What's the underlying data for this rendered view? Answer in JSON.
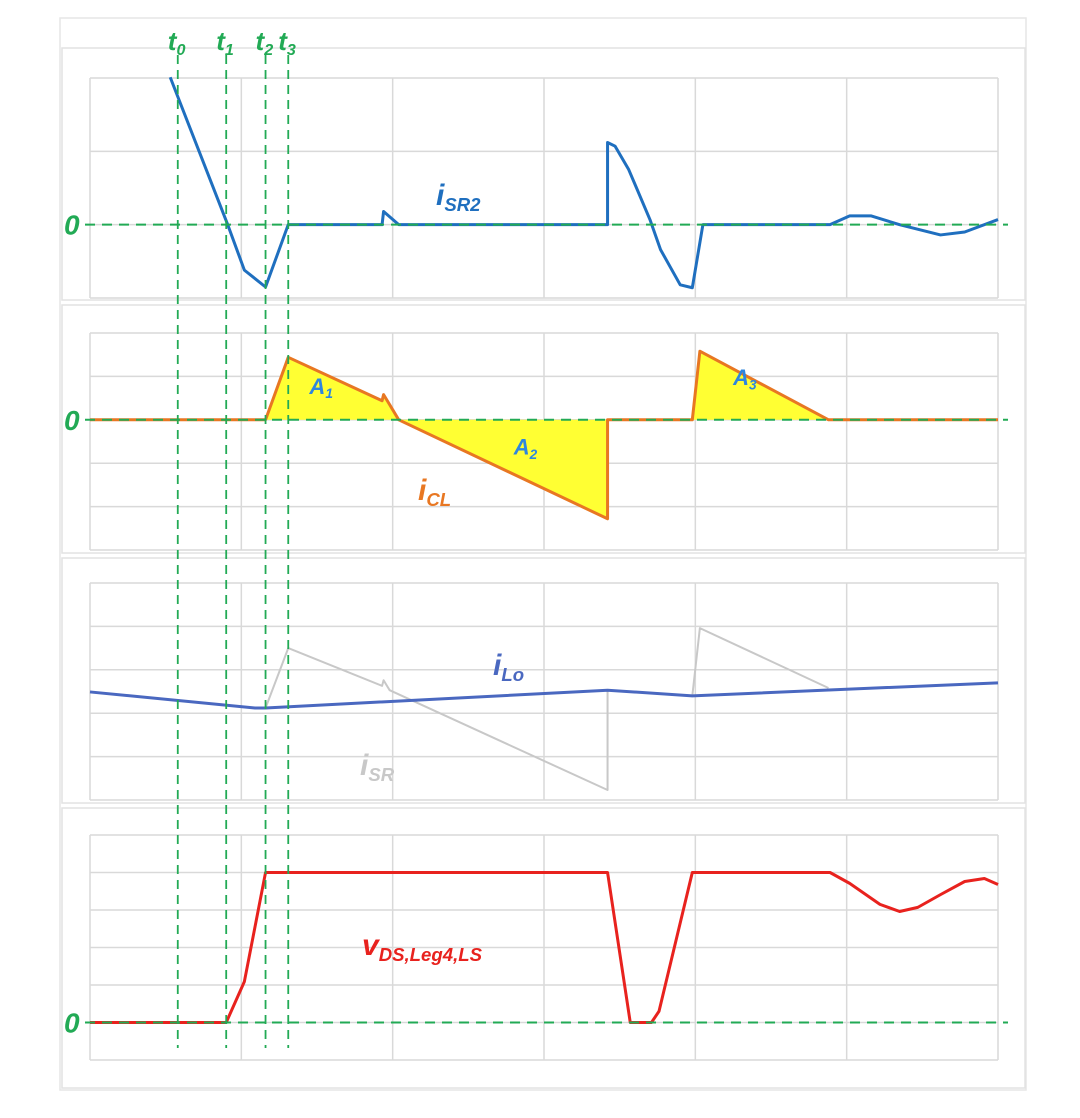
{
  "chart_data": [
    {
      "type": "line",
      "x_unit": "grid divisions",
      "xlim": [
        0,
        6
      ],
      "ylim": [
        -1,
        2
      ],
      "zero_label": "0",
      "grid": true,
      "series": [
        {
          "name": "iSR2",
          "label_main": "i",
          "label_sub": "SR2",
          "color": "#1f6fbf",
          "x": [
            0.53,
            0.91,
            1.02,
            1.16,
            1.31,
            1.93,
            1.94,
            2.04,
            3.42,
            3.42,
            3.47,
            3.56,
            3.7,
            3.77,
            3.9,
            3.98,
            4.05,
            4.89,
            5.02,
            5.16,
            5.35,
            5.62,
            5.78,
            6.0
          ],
          "y": [
            2.01,
            0,
            -0.62,
            -0.85,
            0,
            0,
            0.18,
            0,
            0,
            1.12,
            1.07,
            0.75,
            0.07,
            -0.34,
            -0.82,
            -0.86,
            0,
            0,
            0.12,
            0.12,
            0,
            -0.14,
            -0.1,
            0.07
          ]
        }
      ]
    },
    {
      "type": "area",
      "x_unit": "grid divisions",
      "xlim": [
        0,
        6
      ],
      "ylim": [
        -3,
        2
      ],
      "zero_label": "0",
      "grid": true,
      "fill_color": "#ffff33",
      "series": [
        {
          "name": "iCL",
          "label_main": "i",
          "label_sub": "CL",
          "color": "#e87722",
          "x": [
            0,
            1.16,
            1.31,
            1.93,
            1.94,
            1.98,
            2.04,
            3.42,
            3.42,
            3.98,
            4.03,
            4.88,
            6.0
          ],
          "y": [
            0,
            0,
            1.44,
            0.44,
            0.58,
            0.35,
            0,
            -2.28,
            0,
            0,
            1.58,
            0,
            0
          ]
        }
      ],
      "annotations": [
        {
          "main": "A",
          "sub": "1",
          "x": 1.45,
          "y": 0.6
        },
        {
          "main": "A",
          "sub": "2",
          "x": 2.8,
          "y": -0.8
        },
        {
          "main": "A",
          "sub": "3",
          "x": 4.25,
          "y": 0.8
        }
      ]
    },
    {
      "type": "line",
      "x_unit": "grid divisions",
      "xlim": [
        0,
        6
      ],
      "ylim": [
        0,
        5
      ],
      "grid": true,
      "series": [
        {
          "name": "iLo",
          "label_main": "i",
          "label_sub": "Lo",
          "color": "#4a68c0",
          "x": [
            0,
            1.09,
            1.16,
            3.42,
            3.98,
            6.0
          ],
          "y": [
            2.49,
            2.12,
            2.12,
            2.53,
            2.4,
            2.7
          ]
        },
        {
          "name": "iSR",
          "label_main": "i",
          "label_sub": "SR",
          "color": "#c8c8c8",
          "x": [
            1.16,
            1.31,
            1.93,
            1.94,
            1.98,
            3.42,
            3.42,
            3.98,
            4.03,
            4.88
          ],
          "y": [
            2.12,
            3.5,
            2.63,
            2.76,
            2.53,
            0.23,
            2.53,
            2.4,
            3.96,
            2.58
          ]
        }
      ]
    },
    {
      "type": "line",
      "x_unit": "grid divisions",
      "xlim": [
        0,
        6
      ],
      "ylim": [
        -1,
        5
      ],
      "zero_label": "0",
      "grid": true,
      "series": [
        {
          "name": "vDS,Leg4,LS",
          "label_main": "v",
          "label_sub": "DS,Leg4,LS",
          "color": "#e8221e",
          "x": [
            0,
            0.9,
            1.02,
            1.16,
            3.42,
            3.57,
            3.71,
            3.76,
            3.98,
            4.89,
            5.02,
            5.22,
            5.35,
            5.47,
            5.62,
            5.78,
            5.91,
            6.0
          ],
          "y": [
            0,
            0,
            1.09,
            4.0,
            4.0,
            0,
            0,
            0.3,
            4.0,
            4.0,
            3.71,
            3.15,
            2.96,
            3.07,
            3.41,
            3.76,
            3.84,
            3.68
          ]
        }
      ]
    }
  ],
  "time_markers": [
    {
      "main": "t",
      "sub": "0",
      "x": 0.58
    },
    {
      "main": "t",
      "sub": "1",
      "x": 0.9
    },
    {
      "main": "t",
      "sub": "2",
      "x": 1.16
    },
    {
      "main": "t",
      "sub": "3",
      "x": 1.31
    }
  ],
  "marker_color": "#22aa55"
}
